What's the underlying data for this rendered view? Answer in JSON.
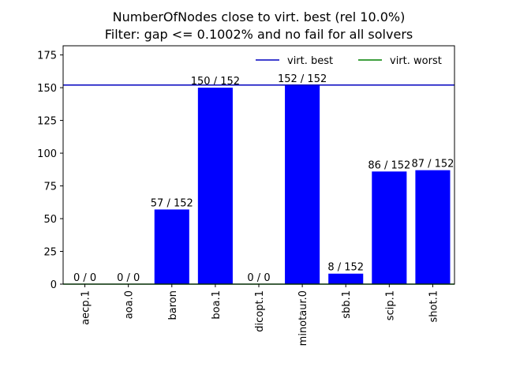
{
  "chart_data": {
    "type": "bar",
    "title_line1": "NumberOfNodes close to virt. best (rel 10.0%)",
    "title_line2": "Filter: gap <= 0.1002% and no fail for all solvers",
    "xlabel": "",
    "ylabel": "",
    "ylim": [
      0,
      182
    ],
    "yticks": [
      0,
      25,
      50,
      75,
      100,
      125,
      150,
      175
    ],
    "categories": [
      "aecp.1",
      "aoa.0",
      "baron",
      "boa.1",
      "dicopt.1",
      "minotaur.0",
      "sbb.1",
      "scip.1",
      "shot.1"
    ],
    "values": [
      0,
      0,
      57,
      150,
      0,
      152,
      8,
      86,
      87
    ],
    "bar_labels": [
      "0 / 0",
      "0 / 0",
      "57 / 152",
      "150 / 152",
      "0 / 0",
      "152 / 152",
      "8 / 152",
      "86 / 152",
      "87 / 152"
    ],
    "bar_color": "#0000ff",
    "reference_lines": [
      {
        "name": "virt. best",
        "value": 152,
        "color": "#0000bf"
      },
      {
        "name": "virt. worst",
        "value": 0,
        "color": "#008000"
      }
    ],
    "legend_position": "top-right",
    "grid": false
  }
}
